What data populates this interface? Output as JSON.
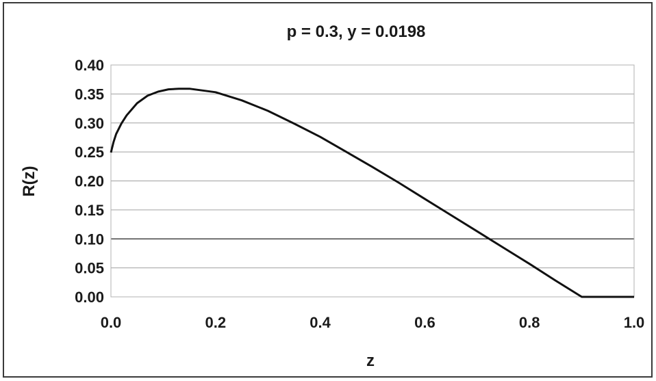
{
  "chart_data": {
    "type": "line",
    "title": "p = 0.3, y = 0.0198",
    "xlabel": "z",
    "ylabel": "R(z)",
    "xlim": [
      0.0,
      1.0
    ],
    "ylim": [
      0.0,
      0.4
    ],
    "x_ticks": [
      "0.0",
      "0.2",
      "0.4",
      "0.6",
      "0.8",
      "1.0"
    ],
    "y_ticks": [
      "0.00",
      "0.05",
      "0.10",
      "0.15",
      "0.20",
      "0.25",
      "0.30",
      "0.35",
      "0.40"
    ],
    "grid": true,
    "legend": "none",
    "line_color": "#111111",
    "grid_color": "#a0a0a0",
    "series": [
      {
        "x": [
          0.0,
          0.005,
          0.01,
          0.02,
          0.03,
          0.05,
          0.07,
          0.09,
          0.11,
          0.13,
          0.15,
          0.2,
          0.25,
          0.3,
          0.35,
          0.4,
          0.45,
          0.5,
          0.55,
          0.6,
          0.65,
          0.7,
          0.75,
          0.8,
          0.85,
          0.9,
          0.95,
          1.0
        ],
        "y": [
          0.249,
          0.267,
          0.281,
          0.299,
          0.313,
          0.334,
          0.347,
          0.354,
          0.358,
          0.359,
          0.359,
          0.353,
          0.339,
          0.321,
          0.299,
          0.276,
          0.25,
          0.224,
          0.197,
          0.169,
          0.141,
          0.113,
          0.085,
          0.057,
          0.028,
          0.0,
          -0.028,
          0.0
        ]
      }
    ]
  }
}
